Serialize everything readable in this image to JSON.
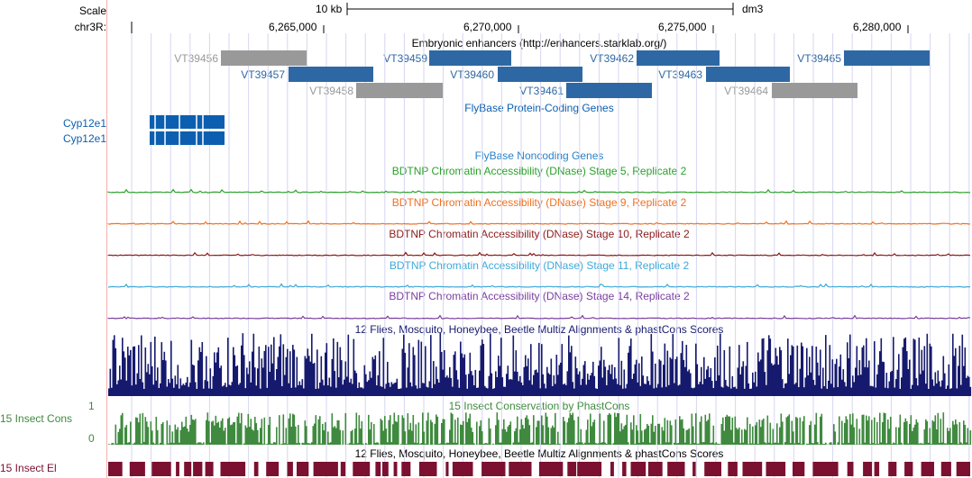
{
  "ruler": {
    "scale_label": "Scale",
    "chrom_label": "chr3R:",
    "scale_bar_text": "10 kb",
    "assembly": "dm3",
    "positions": [
      "6,265,000",
      "6,270,000",
      "6,275,000",
      "6,280,000"
    ]
  },
  "enhancers": {
    "title": "Embryonic enhancers (http://enhancers.starklab.org/)",
    "items": [
      {
        "name": "VT39456",
        "color": "#999999"
      },
      {
        "name": "VT39457",
        "color": "#2e68a4"
      },
      {
        "name": "VT39458",
        "color": "#999999"
      },
      {
        "name": "VT39459",
        "color": "#2e68a4"
      },
      {
        "name": "VT39460",
        "color": "#2e68a4"
      },
      {
        "name": "VT39461",
        "color": "#2e68a4"
      },
      {
        "name": "VT39462",
        "color": "#2e68a4"
      },
      {
        "name": "VT39463",
        "color": "#2e68a4"
      },
      {
        "name": "VT39464",
        "color": "#999999"
      },
      {
        "name": "VT39465",
        "color": "#2e68a4"
      }
    ]
  },
  "protein_genes": {
    "title": "FlyBase Protein-Coding Genes",
    "genes": [
      "Cyp12e1",
      "Cyp12e1"
    ],
    "color": "#0c5fb0"
  },
  "noncoding": {
    "title": "FlyBase Noncoding Genes",
    "color": "#2a82c8"
  },
  "dnase": [
    {
      "title": "BDTNP Chromatin Accessibility (DNase) Stage 5, Replicate 2",
      "color": "#2ca02c"
    },
    {
      "title": "BDTNP Chromatin Accessibility (DNase) Stage 9, Replicate 2",
      "color": "#f07020"
    },
    {
      "title": "BDTNP Chromatin Accessibility (DNase) Stage 10, Replicate 2",
      "color": "#8b1a1a"
    },
    {
      "title": "BDTNP Chromatin Accessibility (DNase) Stage 11, Replicate 2",
      "color": "#3ea9d8"
    },
    {
      "title": "BDTNP Chromatin Accessibility (DNase) Stage 14, Replicate 2",
      "color": "#7a3ea0"
    }
  ],
  "multiz": {
    "title": "12 Flies, Mosquito, Honeybee, Beetle Multiz Alignments & phastCons Scores",
    "color": "#161a6e"
  },
  "phastcons": {
    "title": "15 Insect Conservation by PhastCons",
    "side_label": "15 Insect Cons",
    "axis_max": "1",
    "axis_min": "0",
    "color": "#3f8a3f"
  },
  "elements": {
    "title": "12 Flies, Mosquito, Honeybee, Beetle Multiz Alignments & phastCons Scores",
    "side_label": "15 Insect El",
    "color": "#7b1030"
  }
}
